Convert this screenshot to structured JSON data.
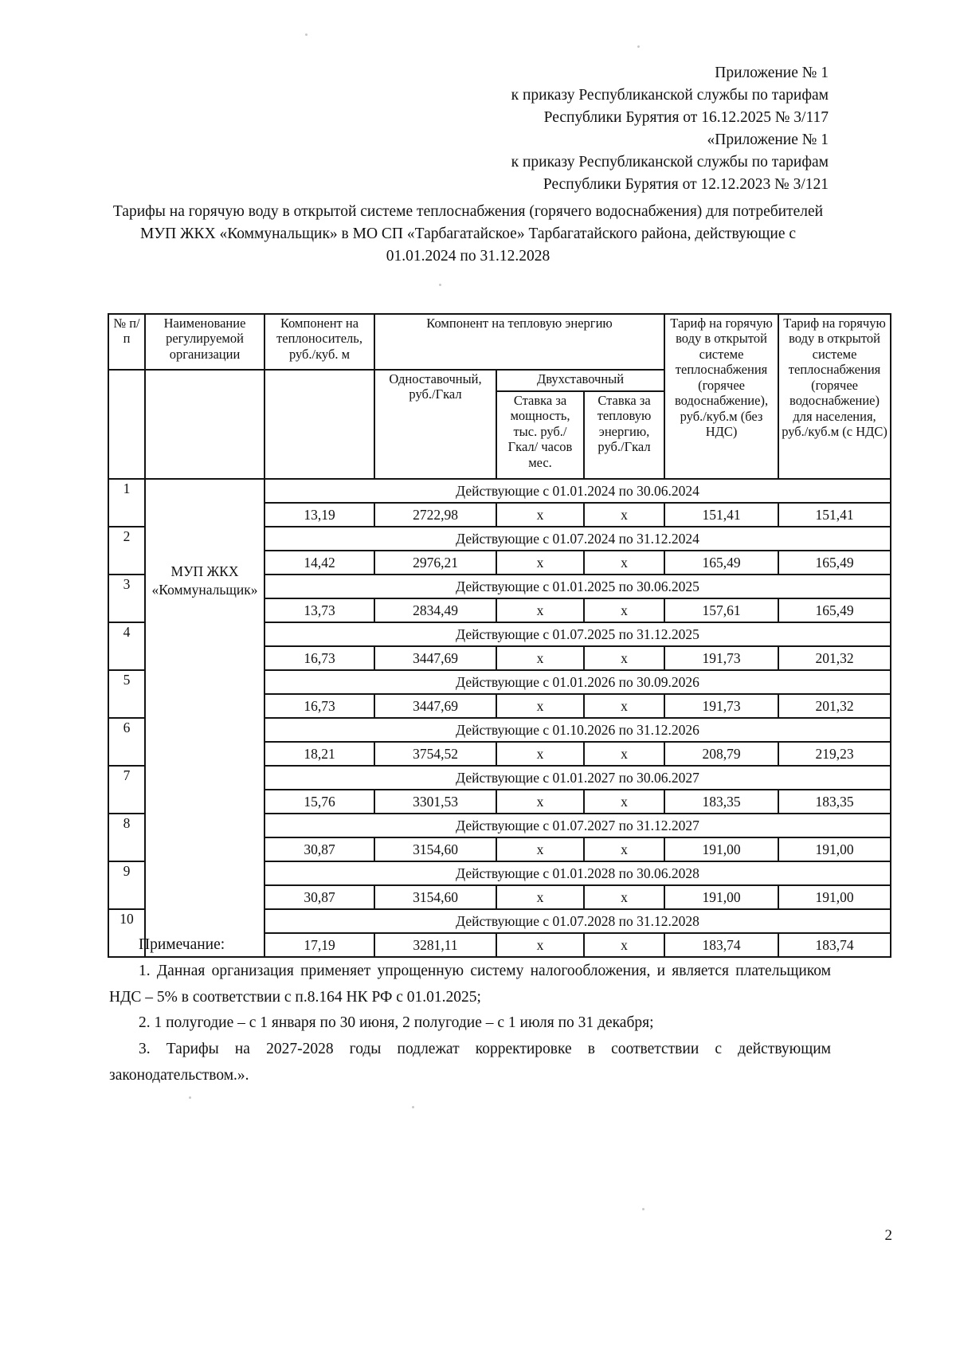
{
  "header": {
    "lines": [
      "Приложение № 1",
      "к приказу Республиканской службы по тарифам",
      "Республики Бурятия от 16.12.2025 № 3/117",
      "«Приложение № 1",
      "к приказу Республиканской службы по тарифам",
      "Республики Бурятия от 12.12.2023 № 3/121"
    ]
  },
  "title": "Тарифы на горячую воду в открытой системе теплоснабжения (горячего водоснабжения) для потребителей МУП ЖКХ «Коммунальщик» в МО СП «Тарбагатайское» Тарбагатайского района, действующие с 01.01.2024 по 31.12.2028",
  "table": {
    "headers": {
      "num": "№ п/п",
      "org": "Наименование регулируемой организации",
      "coolant": "Компонент на теплоноситель, руб./куб. м",
      "heat_energy": "Компонент на тепловую энергию",
      "single_rate": "Одноставочный, руб./Гкал",
      "two_rate": "Двухставочный",
      "capacity_rate": "Ставка за мощность, тыс. руб./Гкал/ часов мес.",
      "energy_rate": "Ставка за тепловую энергию, руб./Гкал",
      "tariff_no_vat": "Тариф на горячую воду в открытой системе теплоснабжения (горячее водоснабжение), руб./куб.м (без НДС)",
      "tariff_vat": "Тариф на горячую воду в открытой системе теплоснабжения (горячее водоснабжение) для населения, руб./куб.м (с НДС)"
    },
    "organization": "МУП ЖКХ «Коммунальщик»",
    "rows": [
      {
        "num": "1",
        "period": "Действующие с 01.01.2024 по 30.06.2024",
        "values": [
          "13,19",
          "2722,98",
          "х",
          "х",
          "151,41",
          "151,41"
        ]
      },
      {
        "num": "2",
        "period": "Действующие с 01.07.2024 по 31.12.2024",
        "values": [
          "14,42",
          "2976,21",
          "х",
          "х",
          "165,49",
          "165,49"
        ]
      },
      {
        "num": "3",
        "period": "Действующие с 01.01.2025 по 30.06.2025",
        "values": [
          "13,73",
          "2834,49",
          "х",
          "х",
          "157,61",
          "165,49"
        ]
      },
      {
        "num": "4",
        "period": "Действующие с 01.07.2025 по 31.12.2025",
        "values": [
          "16,73",
          "3447,69",
          "х",
          "х",
          "191,73",
          "201,32"
        ]
      },
      {
        "num": "5",
        "period": "Действующие с 01.01.2026 по 30.09.2026",
        "values": [
          "16,73",
          "3447,69",
          "х",
          "х",
          "191,73",
          "201,32"
        ]
      },
      {
        "num": "6",
        "period": "Действующие с 01.10.2026 по 31.12.2026",
        "values": [
          "18,21",
          "3754,52",
          "х",
          "х",
          "208,79",
          "219,23"
        ]
      },
      {
        "num": "7",
        "period": "Действующие с 01.01.2027 по 30.06.2027",
        "values": [
          "15,76",
          "3301,53",
          "х",
          "х",
          "183,35",
          "183,35"
        ]
      },
      {
        "num": "8",
        "period": "Действующие с 01.07.2027 по 31.12.2027",
        "values": [
          "30,87",
          "3154,60",
          "х",
          "х",
          "191,00",
          "191,00"
        ]
      },
      {
        "num": "9",
        "period": "Действующие с 01.01.2028 по 30.06.2028",
        "values": [
          "30,87",
          "3154,60",
          "х",
          "х",
          "191,00",
          "191,00"
        ]
      },
      {
        "num": "10",
        "period": "Действующие с 01.07.2028 по 31.12.2028",
        "values": [
          "17,19",
          "3281,11",
          "х",
          "х",
          "183,74",
          "183,74"
        ]
      }
    ]
  },
  "notes": {
    "title": "Примечание:",
    "items": [
      "1. Данная организация применяет упрощенную систему налогообложения, и является плательщиком НДС – 5% в соответствии с п.8.164 НК РФ с 01.01.2025;",
      "2. 1 полугодие – с 1 января по 30 июня, 2 полугодие – с 1 июля по 31 декабря;",
      "3. Тарифы на 2027-2028 годы подлежат корректировке в соответствии с действующим законодательством.»."
    ]
  },
  "page_number": "2"
}
